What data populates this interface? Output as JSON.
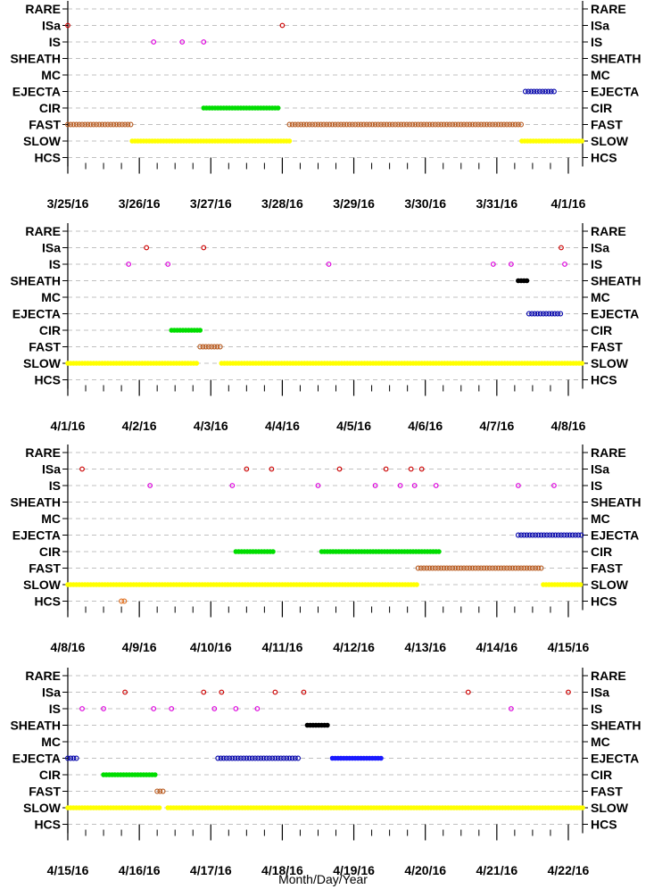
{
  "xlabel": "Month/Day/Year",
  "categories": [
    "RARE",
    "ISa",
    "IS",
    "SHEATH",
    "MC",
    "EJECTA",
    "CIR",
    "FAST",
    "SLOW",
    "HCS"
  ],
  "colors": {
    "ISa": "#cc0000",
    "IS": "#dd00dd",
    "SHEATH": "#000000",
    "EJECTA_open": "#0000aa",
    "EJECTA_filled": "#1a1aff",
    "CIR": "#00dd00",
    "FAST": "#b85a1e",
    "SLOW": "#ffff00",
    "HCS": "#e07020"
  },
  "chart_data": [
    {
      "type": "scatter",
      "xlim": [
        0,
        7.2
      ],
      "ticks": [
        "3/25/16",
        "3/26/16",
        "3/27/16",
        "3/28/16",
        "3/29/16",
        "3/30/16",
        "3/31/16",
        "4/1/16"
      ],
      "segments": [
        {
          "cat": "ISa",
          "style": "point",
          "x": [
            0.0,
            3.0
          ]
        },
        {
          "cat": "IS",
          "style": "point",
          "x": [
            1.2,
            1.6,
            1.9
          ]
        },
        {
          "cat": "EJECTA",
          "style": "open",
          "from": 6.4,
          "to": 6.8
        },
        {
          "cat": "CIR",
          "style": "filled",
          "from": 1.9,
          "to": 2.95
        },
        {
          "cat": "FAST",
          "style": "open",
          "from": 0.0,
          "to": 0.9
        },
        {
          "cat": "FAST",
          "style": "open",
          "from": 3.1,
          "to": 6.35
        },
        {
          "cat": "SLOW",
          "style": "filled",
          "from": 0.9,
          "to": 3.1
        },
        {
          "cat": "SLOW",
          "style": "filled",
          "from": 6.35,
          "to": 7.2
        }
      ]
    },
    {
      "type": "scatter",
      "xlim": [
        0,
        7.2
      ],
      "ticks": [
        "4/1/16",
        "4/2/16",
        "4/3/16",
        "4/4/16",
        "4/5/16",
        "4/6/16",
        "4/7/16",
        "4/8/16"
      ],
      "segments": [
        {
          "cat": "ISa",
          "style": "point",
          "x": [
            1.1,
            1.9,
            6.9
          ]
        },
        {
          "cat": "IS",
          "style": "point",
          "x": [
            0.85,
            1.4,
            3.65,
            5.95,
            6.2,
            6.95
          ]
        },
        {
          "cat": "SHEATH",
          "style": "filled",
          "from": 6.3,
          "to": 6.45
        },
        {
          "cat": "EJECTA",
          "style": "open",
          "from": 6.45,
          "to": 6.9
        },
        {
          "cat": "CIR",
          "style": "filled",
          "from": 1.45,
          "to": 1.85
        },
        {
          "cat": "FAST",
          "style": "open",
          "from": 1.85,
          "to": 2.15
        },
        {
          "cat": "SLOW",
          "style": "filled",
          "from": 0.0,
          "to": 1.8
        },
        {
          "cat": "SLOW",
          "style": "filled",
          "from": 2.15,
          "to": 7.2
        }
      ]
    },
    {
      "type": "scatter",
      "xlim": [
        0,
        7.2
      ],
      "ticks": [
        "4/8/16",
        "4/9/16",
        "4/10/16",
        "4/11/16",
        "4/12/16",
        "4/13/16",
        "4/14/16",
        "4/15/16"
      ],
      "segments": [
        {
          "cat": "ISa",
          "style": "point",
          "x": [
            0.2,
            2.5,
            2.85,
            3.8,
            4.45,
            4.8,
            4.95
          ]
        },
        {
          "cat": "IS",
          "style": "point",
          "x": [
            1.15,
            2.3,
            3.5,
            4.3,
            4.65,
            4.85,
            5.15,
            6.3,
            6.8
          ]
        },
        {
          "cat": "EJECTA",
          "style": "open",
          "from": 6.3,
          "to": 7.2
        },
        {
          "cat": "CIR",
          "style": "filled",
          "from": 2.35,
          "to": 2.9
        },
        {
          "cat": "CIR",
          "style": "filled",
          "from": 3.55,
          "to": 5.2
        },
        {
          "cat": "FAST",
          "style": "open",
          "from": 4.9,
          "to": 6.65
        },
        {
          "cat": "SLOW",
          "style": "filled",
          "from": 0.0,
          "to": 4.9
        },
        {
          "cat": "SLOW",
          "style": "filled",
          "from": 6.65,
          "to": 7.2
        },
        {
          "cat": "HCS",
          "style": "open",
          "from": 0.75,
          "to": 0.8
        }
      ]
    },
    {
      "type": "scatter",
      "xlim": [
        0,
        7.2
      ],
      "ticks": [
        "4/15/16",
        "4/16/16",
        "4/17/16",
        "4/18/16",
        "4/19/16",
        "4/20/16",
        "4/21/16",
        "4/22/16"
      ],
      "segments": [
        {
          "cat": "ISa",
          "style": "point",
          "x": [
            0.8,
            1.9,
            2.15,
            2.9,
            3.3,
            5.6,
            7.0
          ]
        },
        {
          "cat": "IS",
          "style": "point",
          "x": [
            0.2,
            0.5,
            1.2,
            1.45,
            2.05,
            2.35,
            2.65,
            6.2
          ]
        },
        {
          "cat": "SHEATH",
          "style": "filled",
          "from": 3.35,
          "to": 3.65
        },
        {
          "cat": "EJECTA",
          "style": "open",
          "from": 0.0,
          "to": 0.15
        },
        {
          "cat": "EJECTA",
          "style": "open",
          "from": 2.1,
          "to": 3.25
        },
        {
          "cat": "EJECTA",
          "style": "filled",
          "from": 3.7,
          "to": 4.4
        },
        {
          "cat": "CIR",
          "style": "filled",
          "from": 0.5,
          "to": 1.25
        },
        {
          "cat": "FAST",
          "style": "open",
          "from": 1.25,
          "to": 1.35
        },
        {
          "cat": "SLOW",
          "style": "filled",
          "from": 0.0,
          "to": 1.3
        },
        {
          "cat": "SLOW",
          "style": "filled",
          "from": 1.4,
          "to": 7.2
        }
      ]
    }
  ]
}
